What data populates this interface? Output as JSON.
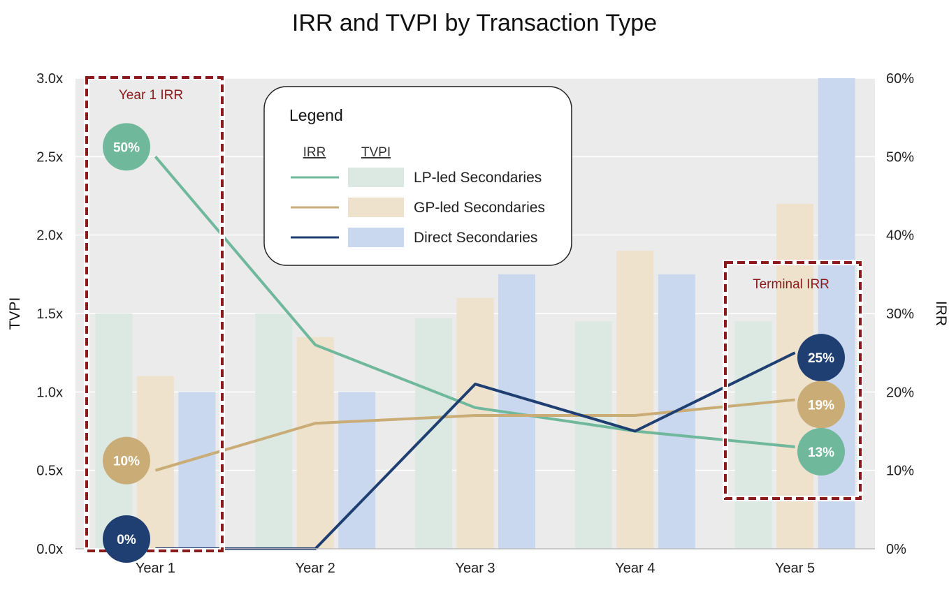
{
  "chart_data": {
    "type": "bar+line",
    "title": "IRR and TVPI by Transaction Type",
    "xlabel": "",
    "ylabel_left": "TVPI",
    "ylabel_right": "IRR",
    "categories": [
      "Year 1",
      "Year 2",
      "Year 3",
      "Year 4",
      "Year 5"
    ],
    "ylim_left": [
      0,
      3.0
    ],
    "ylim_right": [
      0,
      60
    ],
    "left_ticks": [
      "0.0x",
      "0.5x",
      "1.0x",
      "1.5x",
      "2.0x",
      "2.5x",
      "3.0x"
    ],
    "left_tick_values": [
      0,
      0.5,
      1.0,
      1.5,
      2.0,
      2.5,
      3.0
    ],
    "right_ticks": [
      "0%",
      "10%",
      "20%",
      "30%",
      "40%",
      "50%",
      "60%"
    ],
    "right_tick_values": [
      0,
      10,
      20,
      30,
      40,
      50,
      60
    ],
    "grid": true,
    "tvpi_series": [
      {
        "name": "LP-led Secondaries",
        "values": [
          1.5,
          1.5,
          1.47,
          1.45,
          1.45
        ],
        "color": "#dce9e3"
      },
      {
        "name": "GP-led Secondaries",
        "values": [
          1.1,
          1.35,
          1.6,
          1.9,
          2.2
        ],
        "color": "#eee2cd"
      },
      {
        "name": "Direct Secondaries",
        "values": [
          1.0,
          1.0,
          1.75,
          1.75,
          3.0
        ],
        "color": "#c9d8ee"
      }
    ],
    "irr_series": [
      {
        "name": "LP-led Secondaries",
        "values": [
          50,
          26,
          18,
          15,
          13
        ],
        "color": "#6fb89c"
      },
      {
        "name": "GP-led Secondaries",
        "values": [
          10,
          16,
          17,
          17,
          19
        ],
        "color": "#c9ac76"
      },
      {
        "name": "Direct Secondaries",
        "values": [
          0,
          0,
          21,
          15,
          25
        ],
        "color": "#1f3f72"
      }
    ],
    "bubbles": [
      {
        "label": "50%",
        "series": 0,
        "category": 0
      },
      {
        "label": "10%",
        "series": 1,
        "category": 0
      },
      {
        "label": "0%",
        "series": 2,
        "category": 0
      },
      {
        "label": "25%",
        "series": 2,
        "category": 4
      },
      {
        "label": "19%",
        "series": 1,
        "category": 4
      },
      {
        "label": "13%",
        "series": 0,
        "category": 4
      }
    ],
    "annotations": [
      "Year 1 IRR",
      "Terminal IRR"
    ],
    "legend": {
      "title": "Legend",
      "irr_header": "IRR",
      "tvpi_header": "TVPI",
      "placement": "top-center",
      "entries": [
        "LP-led Secondaries",
        "GP-led Secondaries",
        "Direct Secondaries"
      ]
    }
  },
  "colors": {
    "plot_background": "#ebebeb",
    "grid": "#ffffff",
    "annotation_border": "#8b1a1a"
  }
}
